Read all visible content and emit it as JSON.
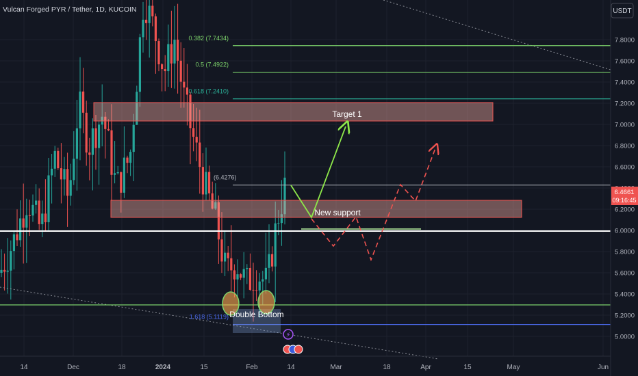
{
  "header": {
    "title": "Vulcan Forged PYR / Tether, 1D, KUCOIN"
  },
  "price_axis": {
    "currency_label": "USDT",
    "last_price": "6.4661",
    "countdown": "09:16:45"
  },
  "chart_data": {
    "type": "candlestick",
    "y_ticks": [
      "7.8000",
      "7.6000",
      "7.4000",
      "7.2000",
      "7.0000",
      "6.8000",
      "6.6000",
      "6.4000",
      "6.2000",
      "6.0000",
      "5.8000",
      "5.6000",
      "5.4000",
      "5.2000",
      "5.0000"
    ],
    "x_ticks": [
      "14",
      "Dec",
      "18",
      "2024",
      "15",
      "Feb",
      "14",
      "Mar",
      "18",
      "Apr",
      "15",
      "May",
      "Jun"
    ],
    "fib_levels": [
      {
        "label": "0.382 (7.7434)",
        "value": 7.7434,
        "color": "#7dd36b"
      },
      {
        "label": "0.5 (7.4922)",
        "value": 7.4922,
        "color": "#7dd36b"
      },
      {
        "label": "0.618 (7.2410)",
        "value": 7.241,
        "color": "#2bb39a"
      },
      {
        "label": "(6.4276)",
        "value": 6.4276,
        "color": "#b2b5be"
      },
      {
        "label": "1.618 (5.1119)",
        "value": 5.1119,
        "color": "#4c6cf0"
      }
    ],
    "zones": [
      {
        "name": "target-zone",
        "label": "Target 1",
        "top": 7.22,
        "bottom": 7.1
      },
      {
        "name": "support-zone",
        "label": "New support",
        "top": 6.38,
        "bottom": 6.23
      }
    ],
    "double_bottom_label": "Double Bottom",
    "levels": [
      6.12,
      5.46
    ],
    "annotations": [
      "Target 1",
      "New support",
      "Double Bottom"
    ],
    "colors": {
      "up": "#26a69a",
      "down": "#ef5350",
      "zone": "rgba(240,160,150,0.42)",
      "zone_border": "#ef5350",
      "path_up": "#8ee84a",
      "path_down": "#ef5350"
    }
  }
}
